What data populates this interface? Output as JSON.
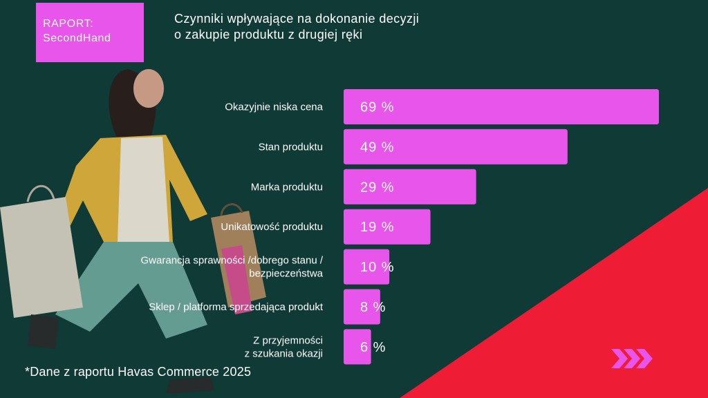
{
  "badge": {
    "line1": "RAPORT:",
    "line2": "SecondHand"
  },
  "title": {
    "line1": "Czynniki wpływające na dokonanie decyzji",
    "line2": "o zakupie produktu z drugiej ręki"
  },
  "footnote": "*Dane z raportu Havas Commerce 2025",
  "colors": {
    "background": "#0f3a36",
    "bar": "#e855ea",
    "accent_red": "#ee1c35",
    "arrows": "#e855ea"
  },
  "icons": {
    "arrows": "triple-chevron-right-icon"
  },
  "chart_data": {
    "type": "bar",
    "orientation": "horizontal",
    "categories": [
      [
        "Okazyjnie niska cena"
      ],
      [
        "Stan produktu"
      ],
      [
        "Marka produktu"
      ],
      [
        "Unikatowość produktu"
      ],
      [
        "Gwarancja sprawności /dobrego stanu /",
        "bezpieczeństwa"
      ],
      [
        "Sklep / platforma sprzedająca produkt"
      ],
      [
        "Z przyjemności",
        "z szukania okazji"
      ]
    ],
    "values": [
      69,
      49,
      29,
      19,
      10,
      8,
      6
    ],
    "value_labels": [
      "69 %",
      "49 %",
      "29 %",
      "19 %",
      "10 %",
      "8 %",
      "6 %"
    ],
    "unit": "%"
  }
}
